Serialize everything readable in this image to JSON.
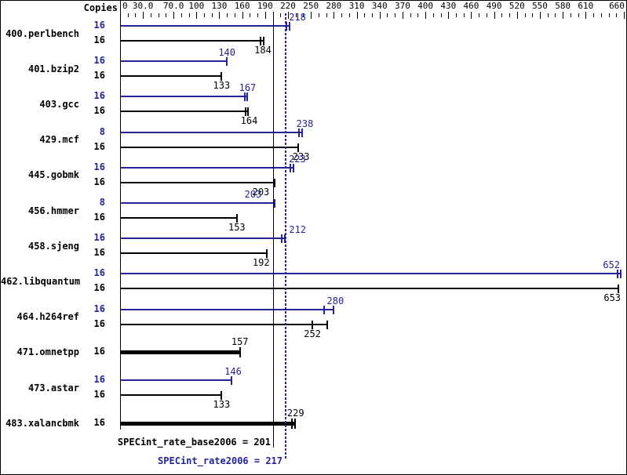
{
  "copies_header": "Copies",
  "axis": {
    "min": 0,
    "max": 660,
    "minor_step": 10,
    "labels": [
      {
        "v": 0,
        "t": "0"
      },
      {
        "v": 30,
        "t": "30.0"
      },
      {
        "v": 70,
        "t": "70.0"
      },
      {
        "v": 100,
        "t": "100"
      },
      {
        "v": 130,
        "t": "130"
      },
      {
        "v": 160,
        "t": "160"
      },
      {
        "v": 190,
        "t": "190"
      },
      {
        "v": 220,
        "t": "220"
      },
      {
        "v": 250,
        "t": "250"
      },
      {
        "v": 280,
        "t": "280"
      },
      {
        "v": 310,
        "t": "310"
      },
      {
        "v": 340,
        "t": "340"
      },
      {
        "v": 370,
        "t": "370"
      },
      {
        "v": 400,
        "t": "400"
      },
      {
        "v": 430,
        "t": "430"
      },
      {
        "v": 460,
        "t": "460"
      },
      {
        "v": 490,
        "t": "490"
      },
      {
        "v": 520,
        "t": "520"
      },
      {
        "v": 550,
        "t": "550"
      },
      {
        "v": 580,
        "t": "580"
      },
      {
        "v": 610,
        "t": "610"
      },
      {
        "v": 660,
        "t": "660"
      }
    ]
  },
  "colors": {
    "peak": "#23239c",
    "base": "#000000",
    "background": "#ffffff"
  },
  "chart_data": {
    "type": "bar",
    "orientation": "horizontal",
    "xlim": [
      0,
      660
    ],
    "legend": "blue bar = peak result, black bar = base result; copies shown left of each bar",
    "benchmarks": [
      {
        "name": "400.perlbench",
        "peak": {
          "copies": "16",
          "value": 218,
          "marks": [
            218,
            222
          ],
          "dx": 14
        },
        "base": {
          "copies": "16",
          "value": 184,
          "marks": [
            184,
            188
          ],
          "dx": 3
        }
      },
      {
        "name": "401.bzip2",
        "peak": {
          "copies": "16",
          "value": 140,
          "marks": [
            140
          ],
          "dx": 0
        },
        "base": {
          "copies": "16",
          "value": 133,
          "marks": [
            133
          ],
          "dx": 0
        }
      },
      {
        "name": "403.gcc",
        "peak": {
          "copies": "16",
          "value": 167,
          "marks": [
            163,
            167
          ],
          "dx": 0
        },
        "base": {
          "copies": "16",
          "value": 164,
          "marks": [
            164,
            168
          ],
          "dx": 5
        }
      },
      {
        "name": "429.mcf",
        "peak": {
          "copies": "8",
          "value": 238,
          "marks": [
            234,
            238
          ],
          "dx": 4
        },
        "base": {
          "copies": "16",
          "value": 233,
          "marks": [
            233
          ],
          "dx": 4
        }
      },
      {
        "name": "445.gobmk",
        "peak": {
          "copies": "16",
          "value": 223,
          "marks": [
            223,
            227
          ],
          "dx": 9
        },
        "base": {
          "copies": "16",
          "value": 203,
          "marks": [
            203
          ],
          "dx": -18
        }
      },
      {
        "name": "456.hmmer",
        "peak": {
          "copies": "8",
          "value": 203,
          "marks": [
            203
          ],
          "dx": -28
        },
        "base": {
          "copies": "16",
          "value": 153,
          "marks": [
            153
          ],
          "dx": 0
        }
      },
      {
        "name": "458.sjeng",
        "peak": {
          "copies": "16",
          "value": 212,
          "marks": [
            212,
            216
          ],
          "dx": 20
        },
        "base": {
          "copies": "16",
          "value": 192,
          "marks": [
            192
          ],
          "dx": -7
        }
      },
      {
        "name": "462.libquantum",
        "peak": {
          "copies": "16",
          "value": 652,
          "marks": [
            652,
            656
          ],
          "dx": -8
        },
        "base": {
          "copies": "16",
          "value": 653,
          "marks": [
            653
          ],
          "dx": -8
        }
      },
      {
        "name": "464.h264ref",
        "peak": {
          "copies": "16",
          "value": 280,
          "marks": [
            267,
            280
          ],
          "dx": 2
        },
        "base": {
          "copies": "16",
          "value": 252,
          "marks": [
            252,
            271
          ],
          "dx": 0
        }
      },
      {
        "name": "471.omnetpp",
        "single": {
          "copies": "16",
          "value": 157,
          "marks": [
            157
          ],
          "dx": 0
        }
      },
      {
        "name": "473.astar",
        "peak": {
          "copies": "16",
          "value": 146,
          "marks": [
            146
          ],
          "dx": 2
        },
        "base": {
          "copies": "16",
          "value": 133,
          "marks": [
            133
          ],
          "dx": 0
        }
      },
      {
        "name": "483.xalancbmk",
        "single": {
          "copies": "16",
          "value": 229,
          "marks": [
            225,
            229
          ],
          "dx": 1
        }
      }
    ],
    "reference_lines": [
      {
        "kind": "base",
        "value": 201,
        "label": "SPECint_rate_base2006 = 201"
      },
      {
        "kind": "peak",
        "value": 217,
        "label": "SPECint_rate2006 = 217"
      }
    ]
  },
  "summary": {
    "base_label": "SPECint_rate_base2006 = 201",
    "peak_label": "SPECint_rate2006 = 217"
  }
}
